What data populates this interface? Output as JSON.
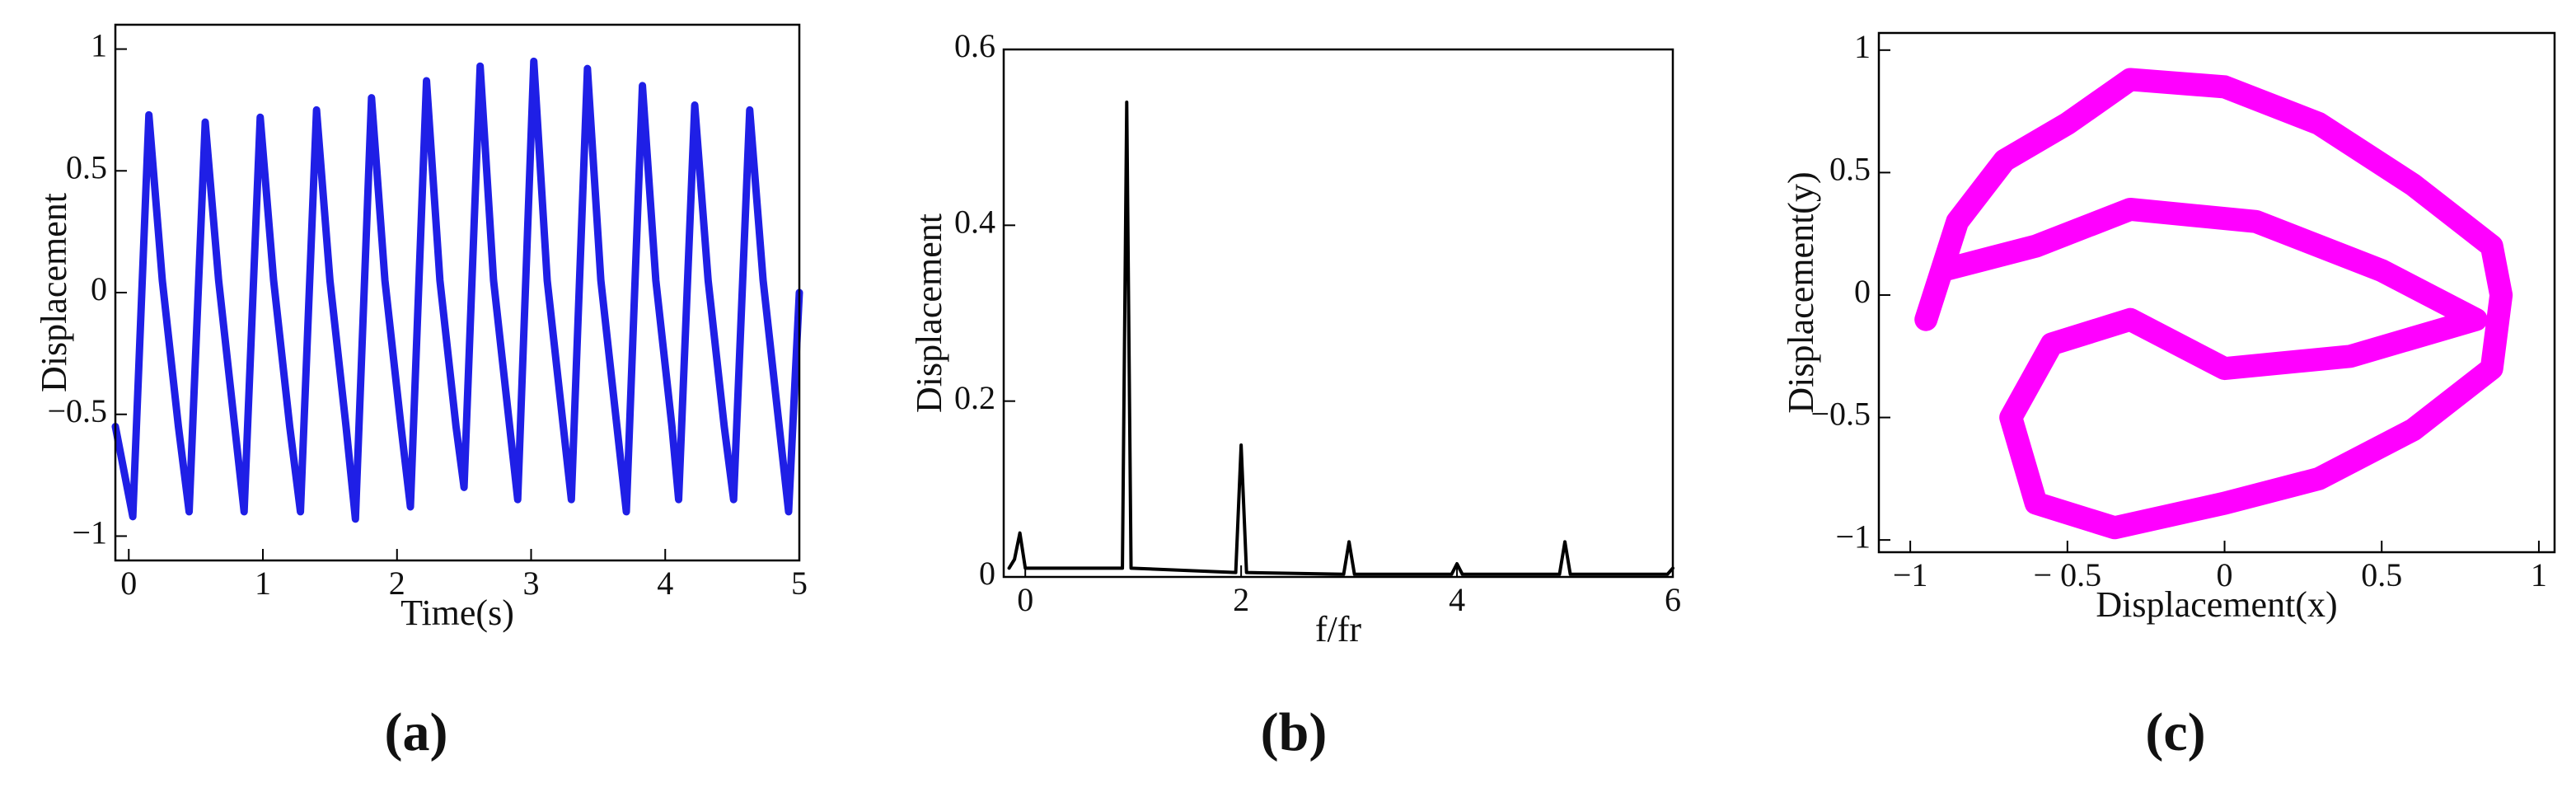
{
  "chart_data": [
    {
      "type": "line",
      "caption": "(a)",
      "xlabel": "Time(s)",
      "ylabel": "Displacement",
      "color": "#1f1fe6",
      "xlim": [
        -0.1,
        5
      ],
      "ylim": [
        -1.1,
        1.1
      ],
      "xticks": [
        0,
        1,
        2,
        3,
        4,
        5
      ],
      "yticks": [
        {
          "value": -1,
          "label": "−1"
        },
        {
          "value": -0.5,
          "label": "−0.5"
        },
        0,
        0.5,
        1
      ],
      "x": [
        -0.1,
        0.03,
        0.15,
        0.25,
        0.37,
        0.45,
        0.57,
        0.67,
        0.79,
        0.86,
        0.98,
        1.08,
        1.2,
        1.28,
        1.4,
        1.5,
        1.62,
        1.69,
        1.81,
        1.91,
        2.03,
        2.1,
        2.22,
        2.32,
        2.44,
        2.5,
        2.62,
        2.72,
        2.84,
        2.9,
        3.02,
        3.12,
        3.24,
        3.3,
        3.42,
        3.52,
        3.64,
        3.71,
        3.83,
        3.93,
        4.05,
        4.1,
        4.22,
        4.32,
        4.44,
        4.51,
        4.63,
        4.73,
        4.85,
        4.92,
        5
      ],
      "values": [
        -0.55,
        -0.92,
        0.73,
        0.05,
        -0.55,
        -0.9,
        0.7,
        0.05,
        -0.55,
        -0.9,
        0.72,
        0.05,
        -0.55,
        -0.9,
        0.75,
        0.05,
        -0.55,
        -0.93,
        0.8,
        0.05,
        -0.55,
        -0.88,
        0.87,
        0.05,
        -0.55,
        -0.8,
        0.93,
        0.05,
        -0.55,
        -0.85,
        0.95,
        0.05,
        -0.55,
        -0.85,
        0.92,
        0.05,
        -0.55,
        -0.9,
        0.85,
        0.05,
        -0.55,
        -0.85,
        0.77,
        0.05,
        -0.55,
        -0.85,
        0.75,
        0.05,
        -0.55,
        -0.9,
        0
      ]
    },
    {
      "type": "line",
      "caption": "(b)",
      "xlabel": "f/fr",
      "ylabel": "Displacement",
      "color": "#000000",
      "xlim": [
        -0.2,
        6
      ],
      "ylim": [
        0,
        0.6
      ],
      "xticks": [
        0,
        2,
        4,
        6
      ],
      "yticks": [
        0,
        0.2,
        0.4,
        0.6
      ],
      "x": [
        -0.15,
        -0.1,
        -0.05,
        0,
        0.9,
        0.94,
        0.98,
        1.95,
        2,
        2.05,
        2.95,
        3,
        3.05,
        3.95,
        4,
        4.05,
        4.95,
        5,
        5.05,
        5.95,
        6
      ],
      "values": [
        0.01,
        0.02,
        0.05,
        0.01,
        0.01,
        0.54,
        0.01,
        0.005,
        0.15,
        0.005,
        0.003,
        0.04,
        0.003,
        0.003,
        0.015,
        0.003,
        0.003,
        0.04,
        0.003,
        0.003,
        0.01
      ]
    },
    {
      "type": "line",
      "caption": "(c)",
      "xlabel": "Displacement(x)",
      "ylabel": "Displacement(y)",
      "color": "#ff00ff",
      "xlim": [
        -1.1,
        1.05
      ],
      "ylim": [
        -1.05,
        1.07
      ],
      "xticks": [
        {
          "value": -1,
          "label": "−1"
        },
        {
          "value": -0.5,
          "label": "− 0.5"
        },
        0,
        0.5,
        1
      ],
      "yticks": [
        {
          "value": -1,
          "label": "−1"
        },
        {
          "value": -0.5,
          "label": "−0.5"
        },
        0,
        0.5,
        1
      ],
      "x": [
        -0.5,
        -0.3,
        0,
        0.3,
        0.6,
        0.85,
        0.88,
        0.85,
        0.6,
        0.3,
        0,
        -0.35,
        -0.6,
        -0.68,
        -0.55,
        -0.3,
        0,
        0.4,
        0.8,
        0.5,
        0.1,
        -0.3,
        -0.6,
        -0.9,
        -0.95,
        -0.85,
        -0.7,
        -0.5
      ],
      "values": [
        0.7,
        0.88,
        0.85,
        0.7,
        0.45,
        0.2,
        0,
        -0.3,
        -0.55,
        -0.75,
        -0.85,
        -0.95,
        -0.85,
        -0.5,
        -0.2,
        -0.1,
        -0.3,
        -0.25,
        -0.1,
        0.1,
        0.3,
        0.35,
        0.2,
        0.1,
        -0.1,
        0.3,
        0.55,
        0.7
      ]
    }
  ]
}
